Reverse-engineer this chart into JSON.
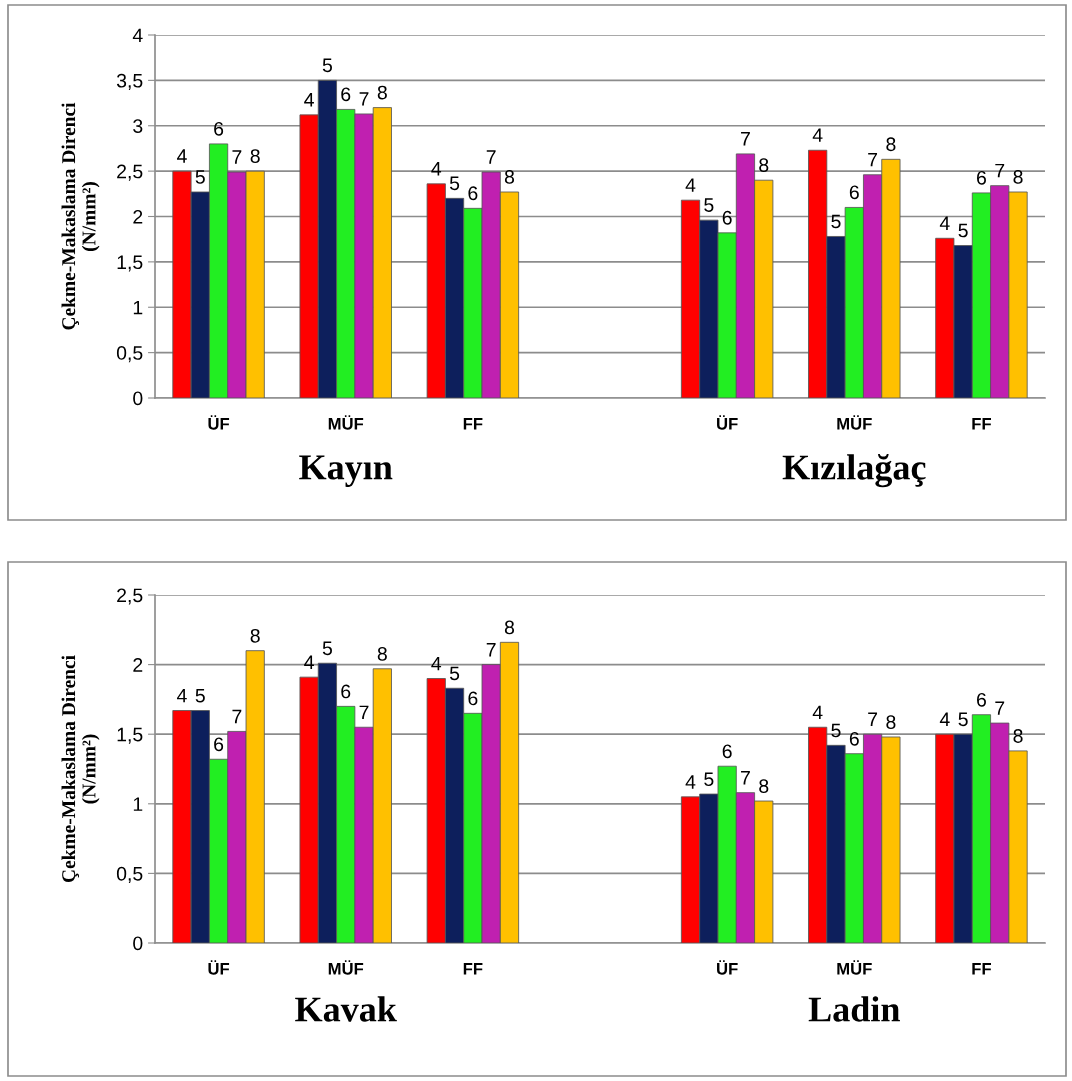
{
  "chart_data": [
    {
      "type": "bar",
      "categories": [
        "ÜF",
        "MÜF",
        "FF",
        null,
        "ÜF",
        "MÜF",
        "FF"
      ],
      "ylabel": "Çekme-Makaslama Direnci\n(N/mm²)",
      "ylim": [
        0,
        4
      ],
      "yticks": [
        0,
        {
          "value": 0.5,
          "label": "0,5"
        },
        1,
        {
          "value": 1.5,
          "label": "1,5"
        },
        2,
        {
          "value": 2.5,
          "label": "2,5"
        },
        3,
        {
          "value": 3.5,
          "label": "3,5"
        },
        4
      ],
      "grid": "y",
      "annotations": [
        "Kayın",
        "Kızılağaç"
      ],
      "series": [
        {
          "name": "4",
          "color": "#ff0000",
          "values": [
            2.5,
            3.12,
            2.36,
            null,
            2.18,
            2.73,
            1.76
          ]
        },
        {
          "name": "5",
          "color": "#0d1f5c",
          "values": [
            2.27,
            3.5,
            2.2,
            null,
            1.96,
            1.78,
            1.68
          ]
        },
        {
          "name": "6",
          "color": "#22ee22",
          "values": [
            2.8,
            3.18,
            2.09,
            null,
            1.82,
            2.1,
            2.26
          ]
        },
        {
          "name": "7",
          "color": "#c020b0",
          "values": [
            2.49,
            3.13,
            2.49,
            null,
            2.69,
            2.46,
            2.34
          ]
        },
        {
          "name": "8",
          "color": "#ffc000",
          "values": [
            2.5,
            3.2,
            2.27,
            null,
            2.4,
            2.63,
            2.27
          ]
        }
      ]
    },
    {
      "type": "bar",
      "categories": [
        "ÜF",
        "MÜF",
        "FF",
        null,
        "ÜF",
        "MÜF",
        "FF"
      ],
      "ylabel": "Çekme-Makaslama Direnci\n(N/mm²)",
      "ylim": [
        0,
        2.5
      ],
      "yticks": [
        0,
        {
          "value": 0.5,
          "label": "0,5"
        },
        1,
        {
          "value": 1.5,
          "label": "1,5"
        },
        2,
        {
          "value": 2.5,
          "label": "2,5"
        }
      ],
      "grid": "y",
      "annotations": [
        "Kavak",
        "Ladin"
      ],
      "series": [
        {
          "name": "4",
          "color": "#ff0000",
          "values": [
            1.67,
            1.91,
            1.9,
            null,
            1.05,
            1.55,
            1.5
          ]
        },
        {
          "name": "5",
          "color": "#0d1f5c",
          "values": [
            1.67,
            2.01,
            1.83,
            null,
            1.07,
            1.42,
            1.5
          ]
        },
        {
          "name": "6",
          "color": "#22ee22",
          "values": [
            1.32,
            1.7,
            1.65,
            null,
            1.27,
            1.36,
            1.64
          ]
        },
        {
          "name": "7",
          "color": "#c020b0",
          "values": [
            1.52,
            1.55,
            2.0,
            null,
            1.08,
            1.5,
            1.58
          ]
        },
        {
          "name": "8",
          "color": "#ffc000",
          "values": [
            2.1,
            1.97,
            2.16,
            null,
            1.02,
            1.48,
            1.38
          ]
        }
      ]
    }
  ]
}
